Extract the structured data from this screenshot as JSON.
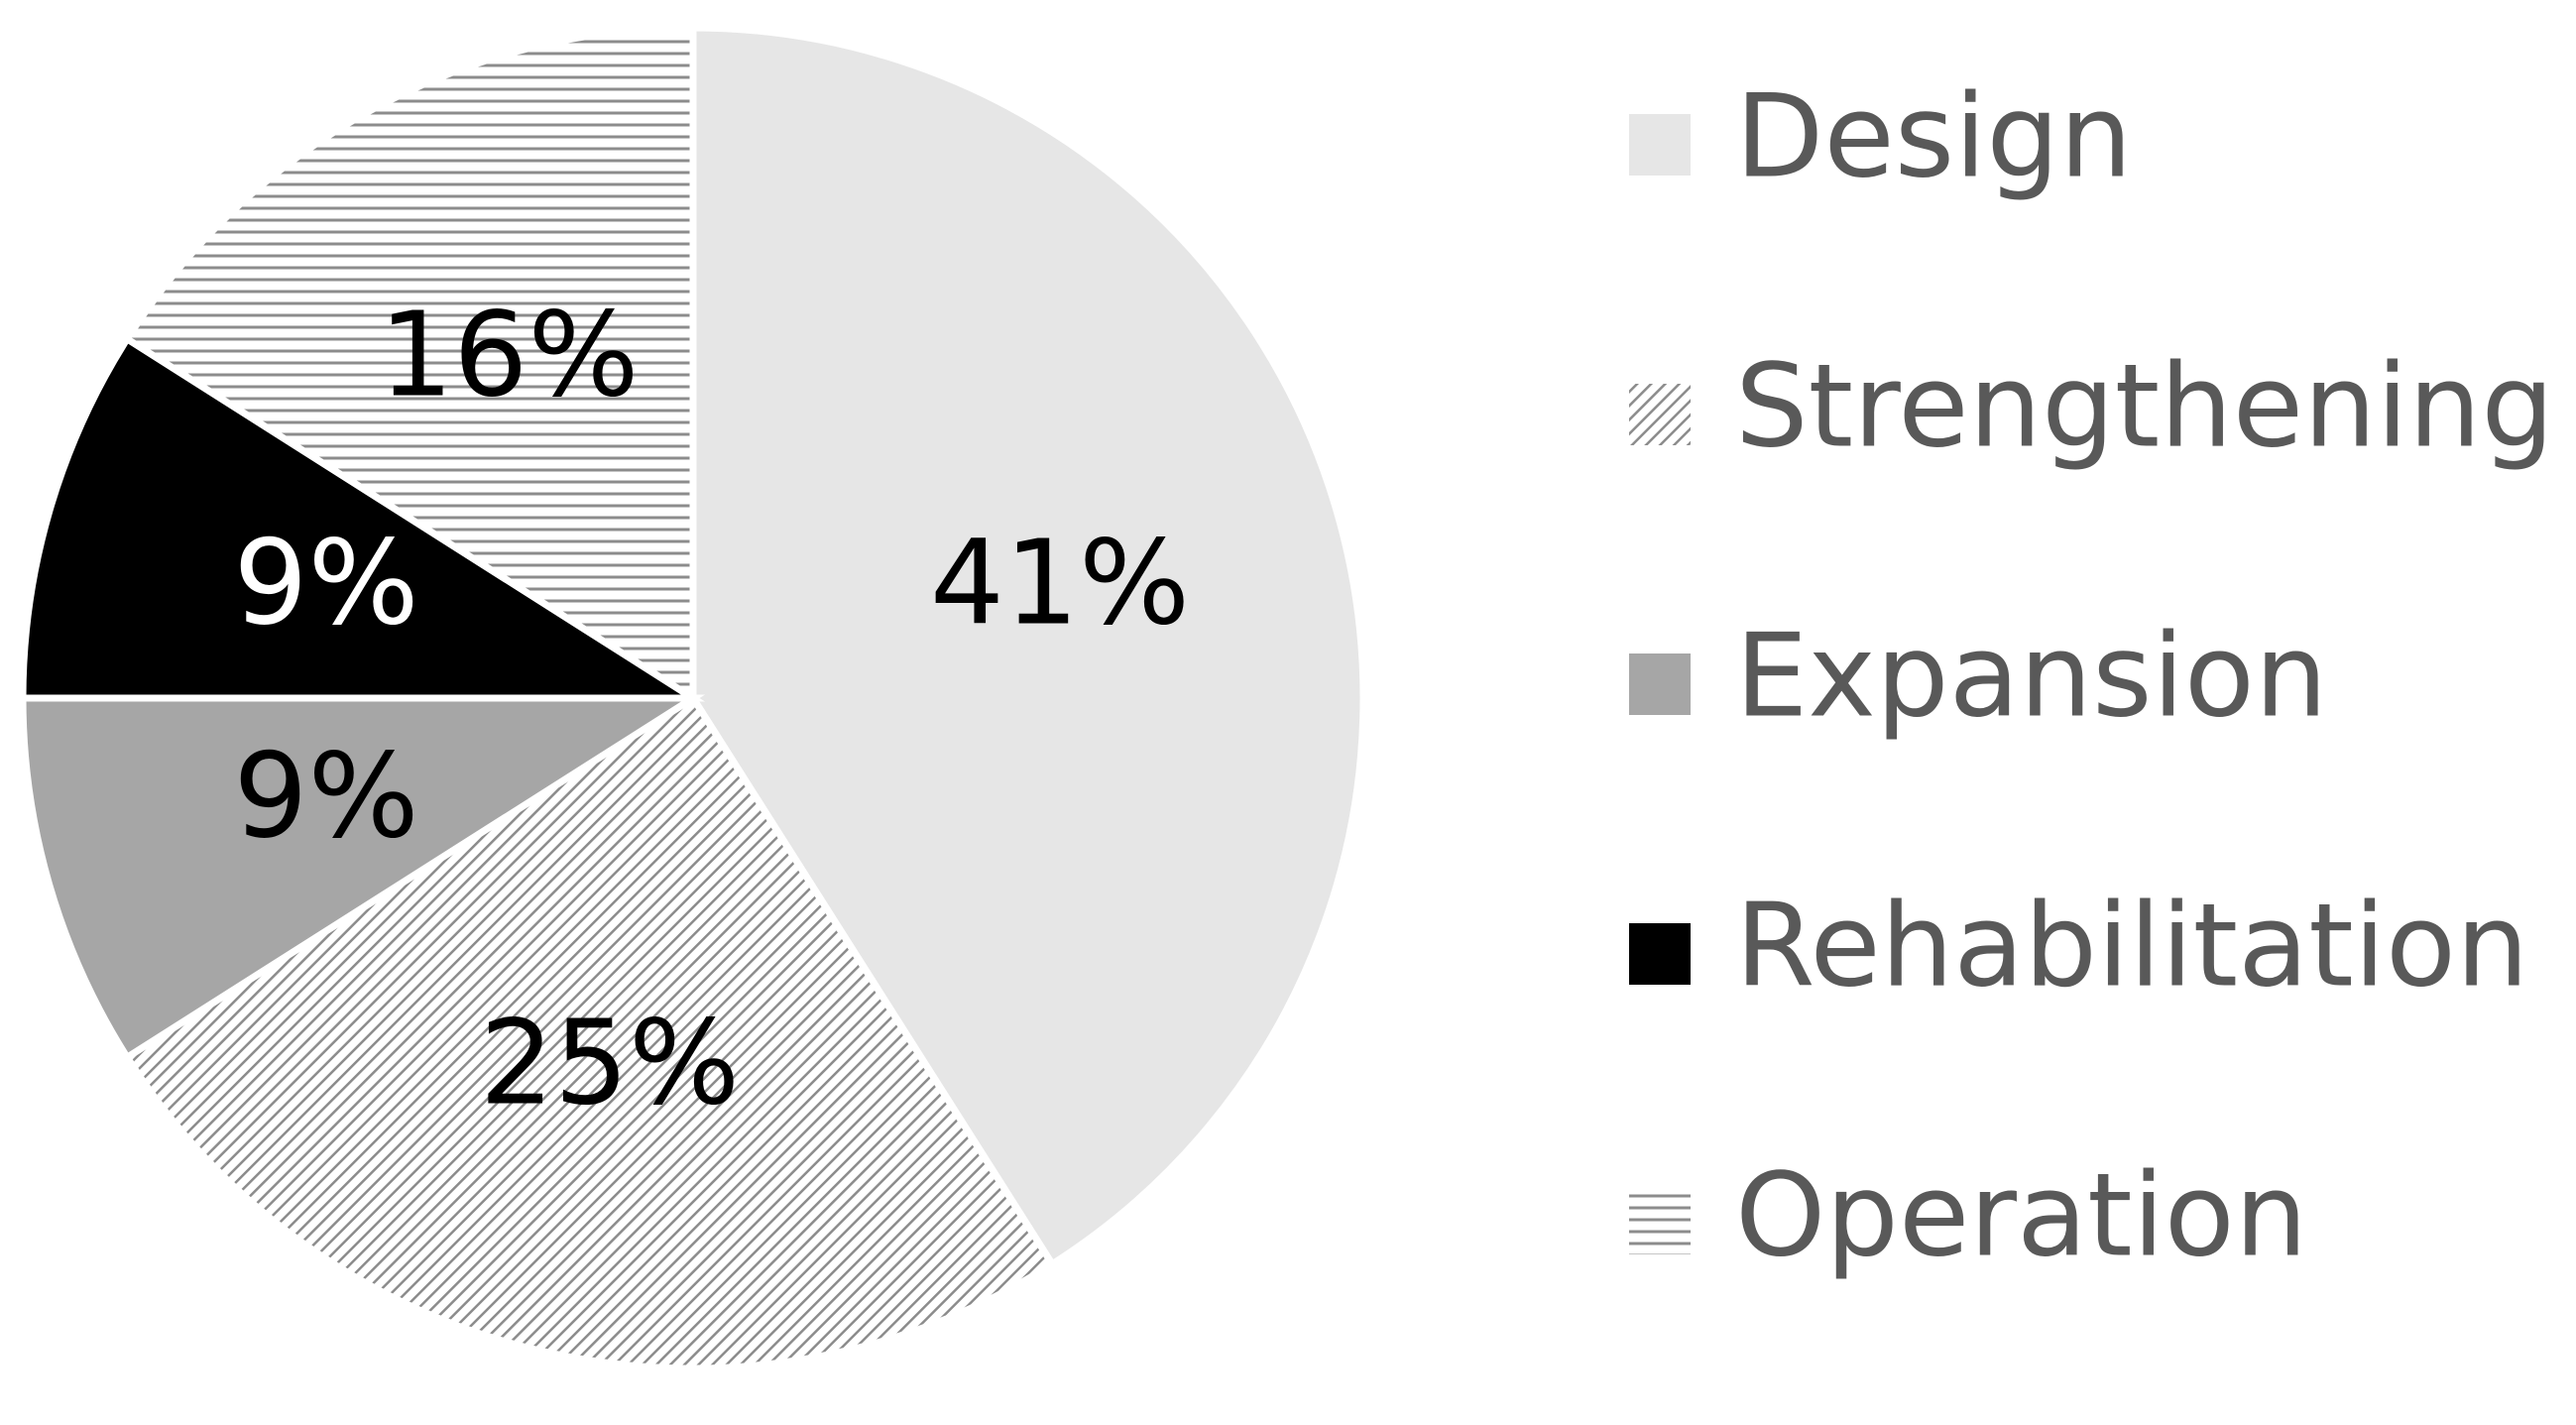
{
  "chart_data": {
    "type": "pie",
    "categories": [
      "Design",
      "Strengthening",
      "Expansion",
      "Rehabilitation",
      "Operation"
    ],
    "values": [
      41,
      25,
      9,
      9,
      16
    ],
    "value_labels": [
      "41%",
      "25%",
      "9%",
      "9%",
      "16%"
    ],
    "colors": [
      "#e6e6e6",
      "#8c8c8c",
      "#a6a6a6",
      "#000000",
      "#8c8c8c"
    ],
    "patterns": [
      null,
      "diagonal",
      null,
      null,
      "horizontal"
    ],
    "legend": "right"
  }
}
